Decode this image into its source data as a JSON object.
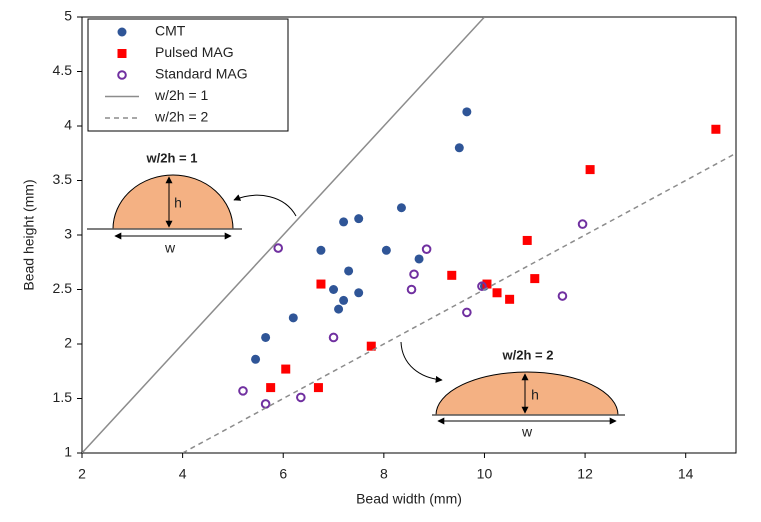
{
  "chart_data": {
    "type": "scatter",
    "x_label": "Bead width (mm)",
    "y_label": "Bead height (mm)",
    "xlim": [
      2,
      15
    ],
    "ylim": [
      1,
      5
    ],
    "xticks": [
      2,
      4,
      6,
      8,
      10,
      12,
      14
    ],
    "yticks": [
      1,
      1.5,
      2,
      2.5,
      3,
      3.5,
      4,
      4.5,
      5
    ],
    "legend": "upper left",
    "series": [
      {
        "name": "CMT",
        "color": "#2f5597",
        "marker": "circle",
        "x": [
          9.65,
          9.5,
          8.35,
          7.5,
          7.2,
          6.75,
          8.05,
          8.7,
          7.3,
          7.0,
          7.5,
          7.2,
          7.1,
          6.2,
          5.65,
          5.45,
          10.0
        ],
        "values": [
          4.13,
          3.8,
          3.25,
          3.15,
          3.12,
          2.86,
          2.86,
          2.78,
          2.67,
          2.5,
          2.47,
          2.4,
          2.32,
          2.24,
          2.06,
          1.86,
          2.53
        ]
      },
      {
        "name": "Pulsed MAG",
        "color": "#ff0000",
        "marker": "square",
        "x": [
          14.6,
          12.1,
          10.85,
          9.35,
          10.05,
          10.25,
          10.5,
          11.0,
          6.75,
          7.75,
          6.05,
          5.75,
          6.7
        ],
        "values": [
          3.97,
          3.6,
          2.95,
          2.63,
          2.55,
          2.47,
          2.41,
          2.6,
          2.55,
          1.98,
          1.77,
          1.6,
          1.6
        ]
      },
      {
        "name": "Standard MAG",
        "color": "#7030a0",
        "marker": "open-circle",
        "x": [
          5.9,
          8.85,
          8.6,
          8.55,
          9.95,
          11.95,
          11.55,
          9.65,
          7.0,
          5.2,
          5.65,
          6.35
        ],
        "values": [
          2.88,
          2.87,
          2.64,
          2.5,
          2.53,
          3.1,
          2.44,
          2.29,
          2.06,
          1.57,
          1.45,
          1.51
        ]
      },
      {
        "name": "w/2h = 1",
        "color": "#8c8c8c",
        "marker": "solid-line",
        "x": [
          2,
          10
        ],
        "values": [
          1,
          5
        ]
      },
      {
        "name": "w/2h = 2",
        "color": "#8c8c8c",
        "marker": "dashed-line",
        "x": [
          4,
          15
        ],
        "values": [
          1,
          3.75
        ]
      }
    ],
    "annotations": [
      "w/2h = 1",
      "h",
      "w",
      "w/2h = 2",
      "h",
      "w"
    ]
  }
}
